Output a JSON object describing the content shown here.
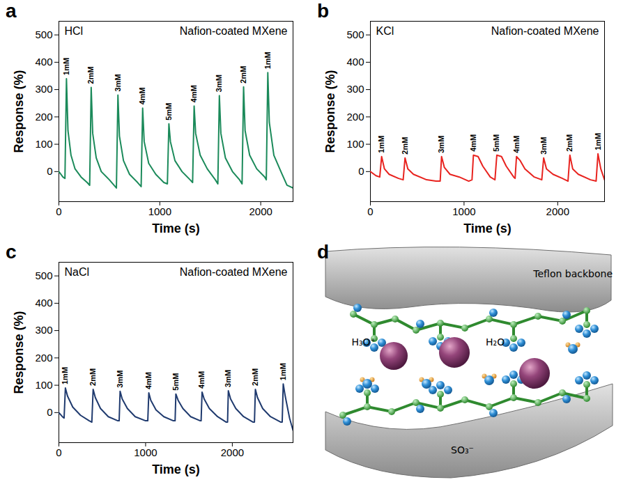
{
  "chart_data": [
    {
      "type": "line",
      "panel_label": "a",
      "title": "HCl",
      "subtitle": "Nafion-coated MXene",
      "xlabel": "Time (s)",
      "ylabel": "Response (%)",
      "color": "#1b8a5a",
      "xlim": [
        0,
        2320
      ],
      "xticks": [
        0,
        1000,
        2000
      ],
      "ylim": [
        -110,
        550
      ],
      "yticks": [
        0,
        100,
        200,
        300,
        400,
        500
      ],
      "x": [
        0,
        40,
        60,
        75,
        90,
        120,
        160,
        220,
        280,
        305,
        320,
        335,
        370,
        420,
        500,
        570,
        585,
        600,
        640,
        700,
        780,
        815,
        830,
        845,
        890,
        960,
        1040,
        1075,
        1090,
        1105,
        1150,
        1220,
        1300,
        1325,
        1340,
        1355,
        1400,
        1470,
        1550,
        1575,
        1590,
        1605,
        1650,
        1720,
        1790,
        1815,
        1830,
        1845,
        1890,
        1960,
        2040,
        2055,
        2070,
        2085,
        2130,
        2200,
        2260,
        2320
      ],
      "values": [
        0,
        -20,
        -25,
        340,
        150,
        60,
        10,
        -20,
        -40,
        -50,
        308,
        140,
        50,
        0,
        -30,
        -60,
        280,
        130,
        40,
        -10,
        -40,
        -55,
        232,
        110,
        30,
        -10,
        -40,
        -45,
        175,
        110,
        40,
        0,
        -30,
        -40,
        240,
        140,
        60,
        10,
        -30,
        -45,
        278,
        140,
        50,
        0,
        -30,
        -45,
        310,
        150,
        60,
        10,
        -20,
        -30,
        362,
        180,
        60,
        0,
        -50,
        -60
      ],
      "peak_labels": [
        {
          "x": 75,
          "text": "1mM"
        },
        {
          "x": 320,
          "text": "2mM"
        },
        {
          "x": 585,
          "text": "3mM"
        },
        {
          "x": 830,
          "text": "4mM"
        },
        {
          "x": 1090,
          "text": "5mM"
        },
        {
          "x": 1340,
          "text": "4mM"
        },
        {
          "x": 1590,
          "text": "3mM"
        },
        {
          "x": 1830,
          "text": "2mM"
        },
        {
          "x": 2070,
          "text": "1mM"
        }
      ]
    },
    {
      "type": "line",
      "panel_label": "b",
      "title": "KCl",
      "subtitle": "Nafion-coated MXene",
      "xlabel": "Time (s)",
      "ylabel": "Response (%)",
      "color": "#e8231f",
      "xlim": [
        0,
        2500
      ],
      "xticks": [
        0,
        1000,
        2000
      ],
      "ylim": [
        -110,
        550
      ],
      "yticks": [
        0,
        100,
        200,
        300,
        400,
        500
      ],
      "x": [
        0,
        60,
        100,
        120,
        150,
        200,
        300,
        350,
        370,
        400,
        460,
        600,
        700,
        745,
        760,
        790,
        850,
        950,
        1050,
        1085,
        1100,
        1150,
        1200,
        1280,
        1330,
        1350,
        1400,
        1450,
        1530,
        1545,
        1560,
        1600,
        1650,
        1750,
        1830,
        1850,
        1880,
        1950,
        2050,
        2110,
        2130,
        2160,
        2220,
        2350,
        2410,
        2430,
        2460,
        2500
      ],
      "values": [
        0,
        -15,
        -20,
        55,
        10,
        -10,
        -25,
        -30,
        50,
        10,
        -10,
        -30,
        -35,
        -35,
        55,
        15,
        -10,
        -20,
        -35,
        -30,
        60,
        55,
        20,
        -20,
        -30,
        60,
        55,
        20,
        -20,
        -25,
        55,
        40,
        10,
        -20,
        -30,
        50,
        10,
        -10,
        -25,
        -35,
        60,
        10,
        -10,
        -30,
        -35,
        65,
        10,
        -30
      ],
      "peak_labels": [
        {
          "x": 120,
          "text": "1mM"
        },
        {
          "x": 370,
          "text": "2mM"
        },
        {
          "x": 760,
          "text": "3mM"
        },
        {
          "x": 1100,
          "text": "4mM"
        },
        {
          "x": 1350,
          "text": "5mM"
        },
        {
          "x": 1560,
          "text": "4mM"
        },
        {
          "x": 1850,
          "text": "3mM"
        },
        {
          "x": 2130,
          "text": "2mM"
        },
        {
          "x": 2430,
          "text": "1mM"
        }
      ]
    },
    {
      "type": "line",
      "panel_label": "c",
      "title": "NaCl",
      "subtitle": "Nafion-coated MXene",
      "xlabel": "Time (s)",
      "ylabel": "Response (%)",
      "color": "#1f3a6e",
      "xlim": [
        0,
        2700
      ],
      "xticks": [
        0,
        1000,
        2000
      ],
      "ylim": [
        -110,
        550
      ],
      "yticks": [
        0,
        100,
        200,
        300,
        400,
        500
      ],
      "x": [
        0,
        40,
        60,
        75,
        100,
        160,
        250,
        350,
        380,
        395,
        420,
        480,
        570,
        680,
        695,
        706,
        730,
        790,
        880,
        1000,
        1025,
        1037,
        1060,
        1120,
        1210,
        1320,
        1340,
        1349,
        1375,
        1430,
        1520,
        1630,
        1640,
        1651,
        1675,
        1735,
        1830,
        1930,
        1945,
        1954,
        1980,
        2040,
        2130,
        2240,
        2255,
        2266,
        2290,
        2350,
        2440,
        2560,
        2575,
        2587,
        2610,
        2660,
        2700
      ],
      "values": [
        0,
        -15,
        -20,
        90,
        60,
        20,
        -10,
        -30,
        -35,
        85,
        55,
        15,
        -15,
        -30,
        -30,
        78,
        50,
        15,
        -15,
        -30,
        -30,
        72,
        45,
        10,
        -15,
        -30,
        -30,
        68,
        45,
        15,
        -15,
        -30,
        -30,
        75,
        50,
        15,
        -15,
        -35,
        -35,
        80,
        50,
        15,
        -15,
        -35,
        -35,
        85,
        55,
        15,
        -15,
        -35,
        -35,
        105,
        60,
        -20,
        -65
      ],
      "peak_labels": [
        {
          "x": 75,
          "text": "1mM"
        },
        {
          "x": 395,
          "text": "2mM"
        },
        {
          "x": 706,
          "text": "3mM"
        },
        {
          "x": 1037,
          "text": "4mM"
        },
        {
          "x": 1349,
          "text": "5mM"
        },
        {
          "x": 1651,
          "text": "4mM"
        },
        {
          "x": 1954,
          "text": "3mM"
        },
        {
          "x": 2266,
          "text": "2mM"
        },
        {
          "x": 2587,
          "text": "1mM"
        }
      ]
    }
  ],
  "diagram": {
    "panel_label": "d",
    "labels": {
      "backbone": "Teflon backbone",
      "hydronium": "H₃O⁺",
      "water": "H₂O",
      "sulfonate": "SO₃⁻"
    }
  }
}
